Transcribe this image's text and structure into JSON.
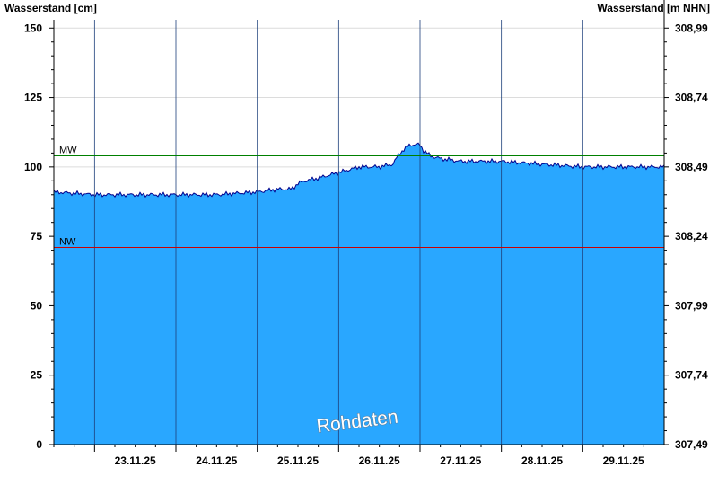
{
  "chart_data": {
    "type": "area",
    "title": "",
    "ylabel_left": "Wasserstand [cm]",
    "ylabel_right": "Wasserstand [m NHN]",
    "ylim": [
      0,
      153
    ],
    "yticks_left": [
      {
        "value": 0,
        "label": "0"
      },
      {
        "value": 25,
        "label": "25"
      },
      {
        "value": 50,
        "label": "50"
      },
      {
        "value": 75,
        "label": "75"
      },
      {
        "value": 100,
        "label": "100"
      },
      {
        "value": 125,
        "label": "125"
      },
      {
        "value": 150,
        "label": "150"
      }
    ],
    "yticks_right": [
      {
        "value": 0,
        "label": "307,49"
      },
      {
        "value": 25,
        "label": "307,74"
      },
      {
        "value": 50,
        "label": "307,99"
      },
      {
        "value": 75,
        "label": "308,24"
      },
      {
        "value": 100,
        "label": "308,49"
      },
      {
        "value": 125,
        "label": "308,74"
      },
      {
        "value": 150,
        "label": "308,99"
      }
    ],
    "xlim": [
      "22.11.25 12:00",
      "29.11.25 24:00"
    ],
    "x_day_labels": [
      "23.11.25",
      "24.11.25",
      "25.11.25",
      "26.11.25",
      "27.11.25",
      "28.11.25",
      "29.11.25"
    ],
    "reference_lines": [
      {
        "name": "MW",
        "value": 104,
        "color": "#008000"
      },
      {
        "name": "NW",
        "value": 71,
        "color": "#cc0000"
      }
    ],
    "series": [
      {
        "color_fill": "#29a7ff",
        "color_line": "#00008b",
        "x": [
          "22.11.25 12:00",
          "23.11.25 00:00",
          "23.11.25 12:00",
          "24.11.25 00:00",
          "24.11.25 12:00",
          "25.11.25 00:00",
          "25.11.25 06:00",
          "25.11.25 10:00",
          "25.11.25 12:00",
          "25.11.25 14:00",
          "25.11.25 18:00",
          "26.11.25 00:00",
          "26.11.25 06:00",
          "26.11.25 12:00",
          "26.11.25 16:00",
          "26.11.25 18:00",
          "26.11.25 21:00",
          "27.11.25 00:00",
          "27.11.25 01:00",
          "27.11.25 03:00",
          "27.11.25 06:00",
          "27.11.25 12:00",
          "28.11.25 00:00",
          "28.11.25 12:00",
          "29.11.25 00:00",
          "29.11.25 12:00",
          "29.11.25 24:00"
        ],
        "y": [
          91,
          90,
          90,
          90,
          90,
          91,
          92,
          92,
          94,
          95,
          96,
          98,
          100,
          100,
          101,
          105,
          108,
          108,
          106,
          104,
          103,
          102,
          102,
          101,
          100,
          100,
          100
        ]
      }
    ],
    "watermark": "Rohdaten",
    "grid": "vertical at day boundaries, horizontal at y ticks"
  }
}
